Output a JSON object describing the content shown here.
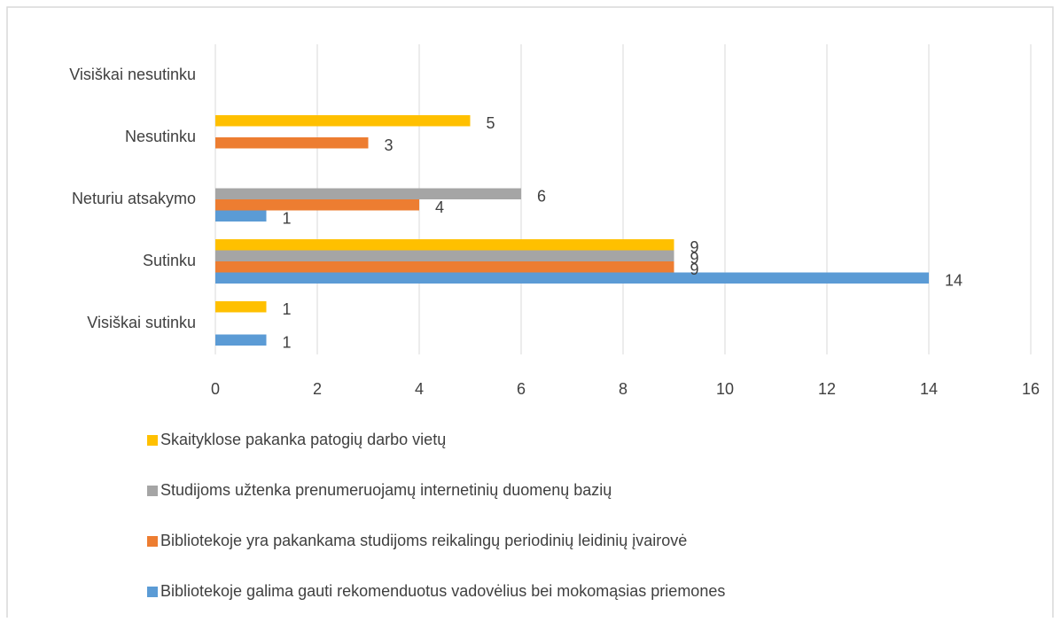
{
  "chart_data": {
    "type": "bar",
    "orientation": "horizontal",
    "categories": [
      "Visiškai sutinku",
      "Sutinku",
      "Neturiu atsakymo",
      "Nesutinku",
      "Visiškai nesutinku"
    ],
    "series": [
      {
        "name": "Bibliotekoje galima gauti rekomenduotus vadovėlius bei mokomąsias priemones",
        "color": "#5b9bd5",
        "values": [
          1,
          14,
          1,
          null,
          null
        ]
      },
      {
        "name": "Bibliotekoje yra pakankama studijoms reikalingų periodinių leidinių įvairovė",
        "color": "#ed7d31",
        "values": [
          null,
          9,
          4,
          3,
          null
        ]
      },
      {
        "name": "Studijoms užtenka prenumeruojamų internetinių duomenų bazių",
        "color": "#a5a5a5",
        "values": [
          null,
          9,
          6,
          null,
          null
        ]
      },
      {
        "name": "Skaityklose pakanka patogių darbo vietų",
        "color": "#ffc000",
        "values": [
          1,
          9,
          null,
          5,
          null
        ]
      }
    ],
    "xlim": [
      0,
      16
    ],
    "xticks": [
      0,
      2,
      4,
      6,
      8,
      10,
      12,
      14,
      16
    ],
    "grid": true,
    "legend": "bottom"
  }
}
